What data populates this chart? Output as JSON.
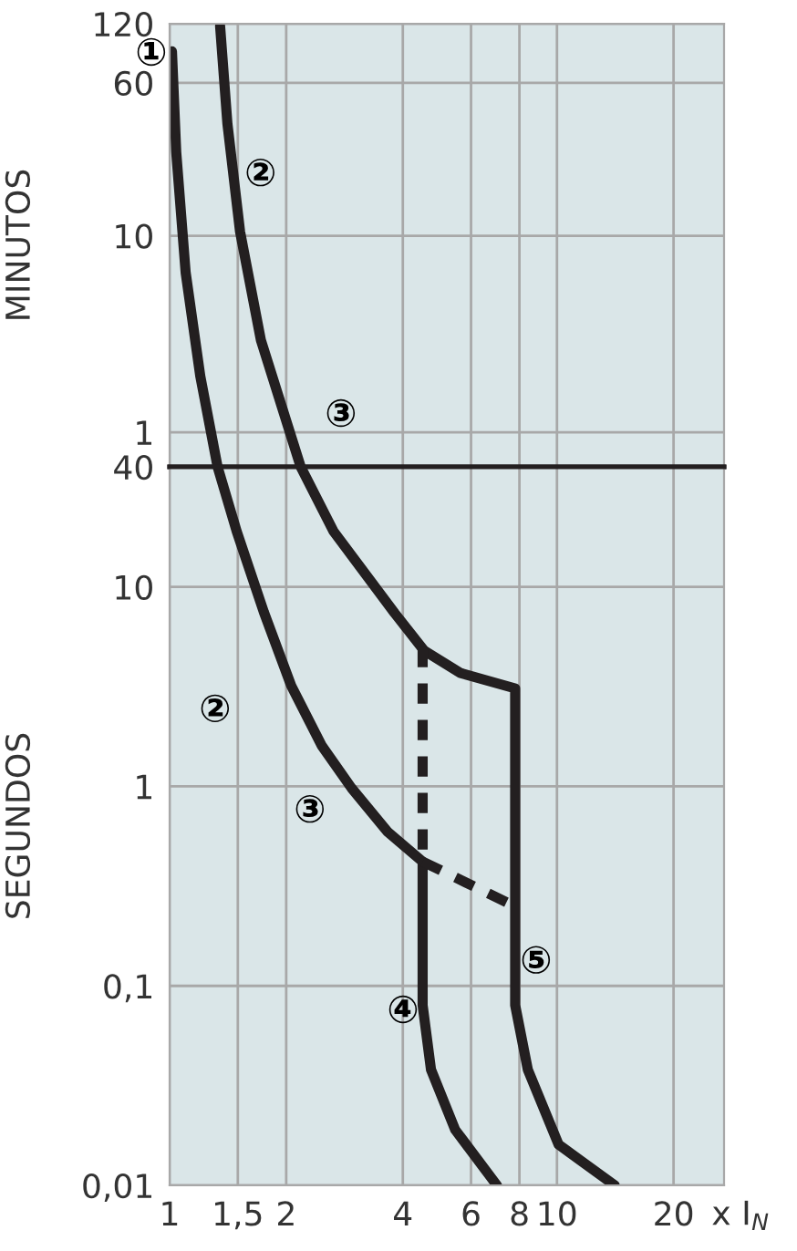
{
  "chart_data": [
    {
      "type": "line",
      "ylabel": "MINUTOS",
      "log": "xy",
      "grid": true,
      "line_style": "solid",
      "tick_labels": "y",
      "xlim": [
        1,
        27
      ],
      "xticks": [
        1,
        1.5,
        2,
        4,
        6,
        8,
        10,
        20
      ],
      "ylim": [
        0.6667,
        120
      ],
      "yticks": [
        1,
        10,
        60,
        120
      ],
      "series": [
        {
          "color": "#231f20",
          "x": [
            1.014,
            1.04,
            1.1,
            1.2,
            1.33
          ],
          "values": [
            86.7,
            26.7,
            6.5,
            1.93,
            0.6667
          ]
        },
        {
          "color": "#231f20",
          "x": [
            1.35,
            1.41,
            1.52,
            1.72,
            2.18
          ],
          "values": [
            116.7,
            37.2,
            10.5,
            2.95,
            0.6667
          ]
        }
      ],
      "annotations": [
        "①",
        "②",
        "③"
      ]
    },
    {
      "type": "line",
      "xlabel": "x I$_{N}$",
      "ylabel": "SEGUNDOS",
      "log": "xy",
      "grid": true,
      "line_style": "solid",
      "xlim": [
        1,
        27
      ],
      "xticks": [
        1,
        {
          "value": 1.5,
          "label": "1,5"
        },
        2,
        4,
        6,
        8,
        10,
        20
      ],
      "ylim": [
        0.01,
        40
      ],
      "yticks": [
        {
          "value": 0.01,
          "label": "0,01"
        },
        {
          "value": 0.1,
          "label": "0,1"
        },
        1,
        10,
        40
      ],
      "series": [
        {
          "color": "#231f20",
          "x": [
            1.33,
            1.49,
            1.75,
            2.06,
            2.47,
            2.95,
            3.66,
            4.5,
            4.5,
            4.73,
            5.46,
            7.0
          ],
          "values": [
            40,
            19,
            7.5,
            3.2,
            1.6,
            0.98,
            0.59,
            0.42,
            0.08,
            0.038,
            0.019,
            0.01
          ]
        },
        {
          "color": "#231f20",
          "x": [
            2.18,
            2.65,
            3.81,
            4.54,
            5.64,
            7.8,
            7.8,
            8.41,
            10.1,
            14.1
          ],
          "values": [
            40,
            19,
            7.4,
            4.8,
            3.7,
            3.1,
            0.08,
            0.038,
            0.016,
            0.01
          ]
        },
        {
          "color": "#231f20",
          "line_style": "dashed",
          "x": [
            4.5,
            4.5
          ],
          "values": [
            5,
            0.42
          ]
        },
        {
          "color": "#231f20",
          "line_style": "dashed",
          "x": [
            4.5,
            7.8
          ],
          "values": [
            0.42,
            0.25
          ]
        }
      ],
      "annotations": [
        "②",
        "③",
        "④",
        "⑤"
      ]
    }
  ]
}
